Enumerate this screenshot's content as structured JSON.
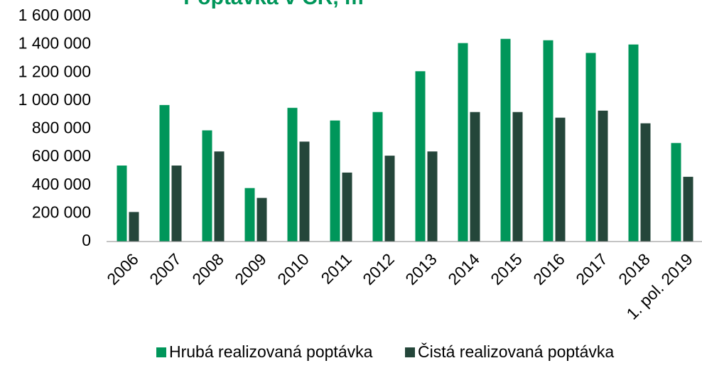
{
  "chart_data": {
    "type": "bar",
    "title": "Poptávka v ČR, m",
    "categories": [
      "2006",
      "2007",
      "2008",
      "2009",
      "2010",
      "2011",
      "2012",
      "2013",
      "2014",
      "2015",
      "2016",
      "2017",
      "2018",
      "1. pol. 2019"
    ],
    "series": [
      {
        "name": "Hrubá realizovaná poptávka",
        "color": "#00965a",
        "values": [
          540000,
          970000,
          790000,
          380000,
          950000,
          860000,
          920000,
          1210000,
          1410000,
          1440000,
          1430000,
          1340000,
          1400000,
          700000
        ]
      },
      {
        "name": "Čistá realizovaná poptávka",
        "color": "#24463a",
        "values": [
          210000,
          540000,
          640000,
          310000,
          710000,
          490000,
          610000,
          640000,
          920000,
          920000,
          880000,
          930000,
          840000,
          460000
        ]
      }
    ],
    "ylim": [
      0,
      1600000
    ],
    "yticks": [
      0,
      {
        "value": 200000,
        "label": "200 000"
      },
      {
        "value": 400000,
        "label": "400 000"
      },
      {
        "value": 600000,
        "label": "600 000"
      },
      {
        "value": 800000,
        "label": "800 000"
      },
      {
        "value": 1000000,
        "label": "1 000 000"
      },
      {
        "value": 1200000,
        "label": "1 200 000"
      },
      {
        "value": 1400000,
        "label": "1 400 000"
      },
      {
        "value": 1600000,
        "label": "1 600 000"
      }
    ],
    "grid": false,
    "legend": "bottom"
  }
}
